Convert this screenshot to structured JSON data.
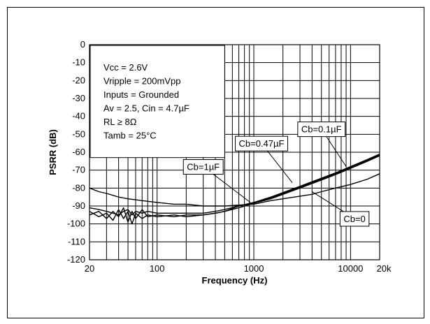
{
  "chart_data": {
    "type": "line",
    "title": "",
    "xlabel": "Frequency (Hz)",
    "ylabel": "PSRR (dB)",
    "xscale": "log",
    "xlim": [
      20,
      20000
    ],
    "ylim": [
      -120,
      0
    ],
    "grid": true,
    "x_tick_labels": [
      {
        "value": 20,
        "label": "20"
      },
      {
        "value": 100,
        "label": "100"
      },
      {
        "value": 1000,
        "label": "1000"
      },
      {
        "value": 10000,
        "label": "10000"
      },
      {
        "value": 20000,
        "label": "20k"
      }
    ],
    "y_ticks": [
      0,
      -10,
      -20,
      -30,
      -40,
      -50,
      -60,
      -70,
      -80,
      -90,
      -100,
      -110,
      -120
    ],
    "conditions": [
      "Vcc = 2.6V",
      "Vripple = 200mVpp",
      "Inputs = Grounded",
      "Av = 2.5, Cin = 4.7µF",
      "RL ≥ 8Ω",
      "Tamb  = 25°C"
    ],
    "series": [
      {
        "name": "Cb=0",
        "label_at": [
          4000,
          -82
        ],
        "label_box": [
          11000,
          -97
        ],
        "x": [
          20,
          25,
          30,
          40,
          50,
          70,
          100,
          150,
          200,
          300,
          400,
          500,
          700,
          1000,
          1500,
          2000,
          3000,
          4000,
          5000,
          7000,
          10000,
          15000,
          20000
        ],
        "y": [
          -80,
          -82,
          -83,
          -85,
          -86,
          -87,
          -88,
          -89,
          -89,
          -90,
          -90,
          -90,
          -89.5,
          -89,
          -87,
          -86,
          -84.5,
          -83.5,
          -82,
          -80,
          -78,
          -75,
          -72
        ]
      },
      {
        "name": "Cb=0.1µF",
        "label_at": [
          9000,
          -68
        ],
        "label_box": [
          5000,
          -47
        ],
        "x": [
          20,
          25,
          30,
          35,
          40,
          45,
          50,
          55,
          60,
          70,
          80,
          100,
          150,
          200,
          300,
          400,
          500,
          700,
          1000,
          1500,
          2000,
          3000,
          5000,
          7000,
          10000,
          15000,
          20000
        ],
        "y": [
          -91,
          -92,
          -93,
          -94,
          -95,
          -93,
          -92,
          -95,
          -93,
          -94,
          -93,
          -94,
          -94,
          -94,
          -94,
          -93,
          -92,
          -90,
          -88,
          -85,
          -82.5,
          -79,
          -74.5,
          -71.5,
          -68,
          -64,
          -61
        ]
      },
      {
        "name": "Cb=0.47µF",
        "label_at": [
          2500,
          -77
        ],
        "label_box": [
          1200,
          -55
        ],
        "x": [
          20,
          25,
          30,
          35,
          40,
          45,
          50,
          55,
          60,
          70,
          80,
          100,
          150,
          200,
          300,
          400,
          500,
          700,
          1000,
          1500,
          2000,
          3000,
          5000,
          7000,
          10000,
          15000,
          20000
        ],
        "y": [
          -93,
          -96,
          -94,
          -98,
          -92,
          -97,
          -93,
          -100,
          -94,
          -97,
          -95,
          -96,
          -95,
          -96,
          -95,
          -94,
          -93,
          -90,
          -88,
          -85.5,
          -83,
          -79.5,
          -75,
          -72,
          -68.5,
          -64.5,
          -61.5
        ]
      },
      {
        "name": "Cb=1µF",
        "label_at": [
          920,
          -88
        ],
        "label_box": [
          300,
          -68
        ],
        "x": [
          20,
          25,
          30,
          35,
          40,
          45,
          50,
          55,
          60,
          70,
          80,
          100,
          150,
          200,
          300,
          400,
          500,
          700,
          1000,
          1500,
          2000,
          3000,
          5000,
          7000,
          10000,
          15000,
          20000
        ],
        "y": [
          -95,
          -93,
          -97,
          -93,
          -96,
          -91,
          -99,
          -93,
          -97,
          -92,
          -96,
          -95,
          -96,
          -95,
          -95,
          -94,
          -93,
          -91,
          -88.5,
          -86,
          -83.5,
          -80,
          -75.5,
          -72.5,
          -69,
          -65,
          -62
        ]
      }
    ]
  }
}
